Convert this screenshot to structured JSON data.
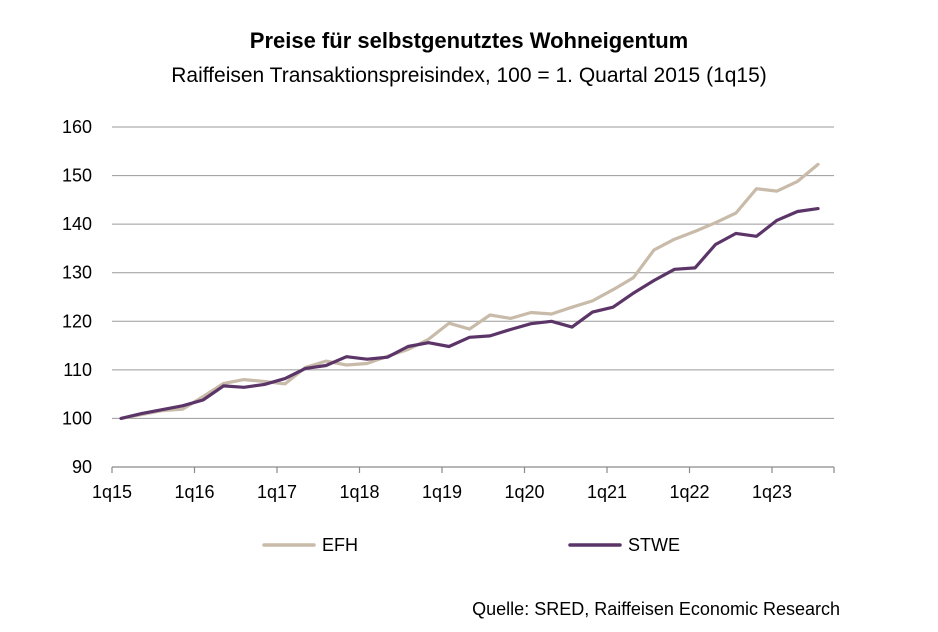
{
  "chart_data": {
    "type": "line",
    "title": "Preise für selbstgenutztes Wohneigentum",
    "subtitle": "Raiffeisen Transaktionspreisindex, 100 = 1. Quartal 2015 (1q15)",
    "xlabel": "",
    "ylabel": "",
    "ylim": [
      90,
      160
    ],
    "yticks": [
      90,
      100,
      110,
      120,
      130,
      140,
      150,
      160
    ],
    "xtick_labels": [
      "1q15",
      "1q16",
      "1q17",
      "1q18",
      "1q19",
      "1q20",
      "1q21",
      "1q22",
      "1q23"
    ],
    "x": [
      "1q15",
      "2q15",
      "3q15",
      "4q15",
      "1q16",
      "2q16",
      "3q16",
      "4q16",
      "1q17",
      "2q17",
      "3q17",
      "4q17",
      "1q18",
      "2q18",
      "3q18",
      "4q18",
      "1q19",
      "2q19",
      "3q19",
      "4q19",
      "1q20",
      "2q20",
      "3q20",
      "4q20",
      "1q21",
      "2q21",
      "3q21",
      "4q21",
      "1q22",
      "2q22",
      "3q22",
      "4q22",
      "1q23",
      "2q23",
      "3q23"
    ],
    "series": [
      {
        "name": "EFH",
        "color": "#c9bba9",
        "values": [
          100.0,
          100.8,
          101.6,
          101.9,
          104.5,
          107.2,
          108.0,
          107.6,
          107.1,
          110.5,
          111.8,
          111.0,
          111.3,
          112.8,
          114.2,
          116.3,
          119.6,
          118.4,
          121.3,
          120.6,
          121.8,
          121.5,
          122.9,
          124.2,
          126.5,
          129.0,
          134.7,
          136.9,
          138.5,
          140.3,
          142.3,
          147.3,
          146.8,
          148.8,
          152.3
        ]
      },
      {
        "name": "STWE",
        "color": "#5c3568",
        "values": [
          100.0,
          101.0,
          101.8,
          102.6,
          103.8,
          106.7,
          106.4,
          107.0,
          108.2,
          110.3,
          110.9,
          112.7,
          112.2,
          112.6,
          114.8,
          115.6,
          114.8,
          116.7,
          117.0,
          118.3,
          119.5,
          120.0,
          118.8,
          121.9,
          122.9,
          125.8,
          128.4,
          130.7,
          131.0,
          135.8,
          138.1,
          137.5,
          140.8,
          142.6,
          143.2
        ]
      }
    ]
  },
  "source": "Quelle: SRED, Raiffeisen Economic Research"
}
